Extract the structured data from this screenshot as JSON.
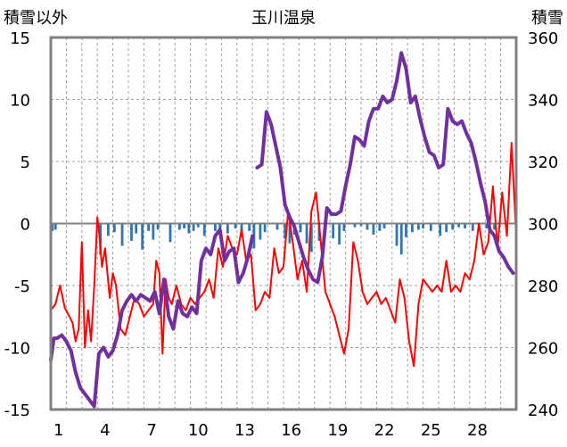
{
  "chart_data": {
    "type": "line",
    "title": "玉川温泉",
    "left_axis_label": "積雪以外",
    "right_axis_label": "積雪",
    "left_axis": {
      "min": -15,
      "max": 15,
      "ticks": [
        "-15",
        "-10",
        "-5",
        "0",
        "5",
        "10",
        "15"
      ]
    },
    "right_axis": {
      "min": 240,
      "max": 360,
      "ticks": [
        "240",
        "260",
        "280",
        "300",
        "320",
        "340",
        "360"
      ]
    },
    "x_axis": {
      "min": 0,
      "max": 30,
      "ticks": [
        "1",
        "4",
        "7",
        "10",
        "13",
        "16",
        "19",
        "22",
        "25",
        "28"
      ]
    },
    "grid": true,
    "colors": {
      "temperature": "#ff0000",
      "snow": "#7030a0",
      "precip": "#2e75b6",
      "frame": "#808080"
    },
    "series": [
      {
        "axis": "left",
        "kind": "line",
        "x": [
          0.0,
          0.3,
          0.6,
          0.9,
          1.2,
          1.4,
          1.6,
          1.8,
          2.0,
          2.2,
          2.4,
          2.6,
          2.8,
          3.0,
          3.1,
          3.3,
          3.5,
          3.8,
          4.0,
          4.2,
          4.5,
          4.8,
          5.1,
          5.4,
          5.7,
          6.0,
          6.3,
          6.6,
          6.8,
          7.0,
          7.2,
          7.4,
          7.6,
          7.8,
          8.1,
          8.4,
          8.7,
          9.0,
          9.3,
          9.6,
          9.9,
          10.2,
          10.5,
          10.8,
          11.1,
          11.4,
          11.7,
          12.0,
          12.3,
          12.6,
          12.9,
          13.2,
          13.5,
          13.8,
          14.1,
          14.4,
          14.7,
          15.0,
          15.3,
          15.6,
          15.9,
          16.2,
          16.5,
          16.8,
          17.1,
          17.4,
          17.7,
          18.0,
          18.3,
          18.6,
          18.9,
          19.2,
          19.5,
          19.8,
          20.1,
          20.4,
          20.7,
          21.0,
          21.3,
          21.6,
          21.9,
          22.2,
          22.5,
          22.8,
          23.1,
          23.4,
          23.7,
          24.0,
          24.3,
          24.6,
          24.9,
          25.2,
          25.5,
          25.8,
          26.1,
          26.4,
          26.7,
          27.0,
          27.3,
          27.6,
          27.9,
          28.2,
          28.5,
          28.8,
          29.1,
          29.4,
          29.7,
          30.0
        ],
        "y": [
          -7.0,
          -6.5,
          -5.0,
          -6.8,
          -7.5,
          -8.0,
          -9.5,
          -8.5,
          -1.5,
          -10.0,
          -7.0,
          -9.5,
          -5.0,
          0.5,
          -0.5,
          -3.5,
          -2.0,
          -6.0,
          -4.0,
          -5.0,
          -8.5,
          -9.0,
          -7.5,
          -6.0,
          -6.5,
          -7.5,
          -7.0,
          -6.5,
          -3.0,
          -4.0,
          -10.5,
          -4.5,
          -6.0,
          -6.5,
          -5.0,
          -6.5,
          -7.0,
          -6.0,
          -6.5,
          -6.0,
          -5.5,
          -4.5,
          -6.0,
          -2.0,
          -3.5,
          -1.0,
          -2.0,
          -2.5,
          -0.5,
          -3.0,
          -2.5,
          -7.0,
          -6.5,
          -5.5,
          -6.0,
          -2.0,
          -4.0,
          -3.5,
          1.0,
          -1.5,
          -4.5,
          -3.0,
          -5.5,
          1.0,
          2.5,
          -1.5,
          -5.5,
          -6.5,
          -7.5,
          -9.0,
          -10.5,
          -8.5,
          -1.5,
          -3.0,
          -5.5,
          -6.5,
          -6.0,
          -5.5,
          -6.5,
          -6.0,
          -7.0,
          -8.0,
          -4.5,
          -6.0,
          -9.5,
          -11.5,
          -6.5,
          -4.5,
          -5.0,
          -5.5,
          -5.0,
          -5.5,
          -3.0,
          -5.5,
          -5.0,
          -5.5,
          -4.0,
          -4.5,
          -3.0,
          0.0,
          -2.5,
          -1.5,
          3.0,
          -2.0,
          2.5,
          -1.0,
          6.5,
          -1.0
        ]
      },
      {
        "axis": "right",
        "kind": "line",
        "x": [
          0.0,
          0.2,
          0.4,
          0.7,
          1.0,
          1.3,
          1.6,
          1.9,
          2.2,
          2.5,
          2.8,
          3.1,
          3.4,
          3.7,
          4.0,
          4.3,
          4.6,
          4.9,
          5.2,
          5.5,
          5.8,
          6.1,
          6.4,
          6.7,
          7.0,
          7.3,
          7.6,
          7.9,
          8.2,
          8.5,
          8.8,
          9.1,
          9.4,
          9.7,
          10.0,
          10.3,
          10.6,
          10.9,
          11.2,
          11.5,
          11.8,
          12.1,
          12.4,
          12.7,
          13.0
        ],
        "y": [
          256,
          263,
          263,
          264,
          262,
          259,
          252,
          247,
          245,
          243,
          241,
          258,
          260,
          257,
          259,
          264,
          272,
          275,
          277,
          275,
          277,
          276,
          275,
          278,
          271,
          282,
          270,
          266,
          275,
          271,
          270,
          273,
          271,
          288,
          292,
          290,
          296,
          298,
          288,
          291,
          292,
          281,
          284,
          289,
          296
        ]
      },
      {
        "axis": "right",
        "kind": "line",
        "x": [
          13.3,
          13.6,
          13.9,
          14.2,
          14.5,
          14.8,
          15.1,
          15.4,
          15.7,
          16.0,
          16.3,
          16.6,
          16.9,
          17.2,
          17.5,
          17.8,
          18.1,
          18.4,
          18.7,
          19.0,
          19.3,
          19.6,
          19.9,
          20.2,
          20.5,
          20.8,
          21.1,
          21.4,
          21.7,
          22.0,
          22.3,
          22.6,
          22.9,
          23.2,
          23.5,
          23.8,
          24.1,
          24.4,
          24.7,
          25.0,
          25.3,
          25.6,
          25.9,
          26.2,
          26.5,
          26.8,
          27.1,
          27.4,
          27.7,
          28.0,
          28.3,
          28.6,
          28.9,
          29.2,
          29.5,
          29.8
        ],
        "y": [
          318,
          319,
          336,
          332,
          325,
          318,
          306,
          302,
          299,
          294,
          289,
          285,
          282,
          281,
          289,
          305,
          303,
          303,
          304,
          312,
          319,
          328,
          327,
          325,
          333,
          337,
          337,
          341,
          339,
          340,
          346,
          355,
          350,
          339,
          341,
          334,
          328,
          323,
          322,
          318,
          319,
          337,
          333,
          332,
          333,
          329,
          326,
          320,
          313,
          307,
          298,
          296,
          291,
          289,
          286,
          284
        ]
      },
      {
        "axis": "left",
        "kind": "bar",
        "x": [
          0.1,
          0.3,
          3.2,
          3.7,
          4.1,
          4.6,
          5.2,
          5.5,
          5.9,
          6.3,
          6.6,
          6.9,
          7.7,
          8.3,
          8.6,
          8.9,
          9.2,
          9.5,
          9.9,
          10.6,
          10.9,
          11.4,
          11.9,
          12.3,
          12.8,
          13.1,
          13.5,
          13.8,
          14.6,
          15.1,
          15.4,
          15.7,
          16.1,
          16.5,
          16.8,
          17.3,
          17.7,
          18.2,
          18.6,
          18.9,
          19.6,
          20.0,
          20.4,
          20.8,
          21.2,
          21.5,
          22.3,
          22.6,
          22.9,
          23.3,
          23.7,
          24.0,
          24.5,
          25.1,
          25.5,
          25.9,
          26.3,
          26.7,
          27.2,
          27.6,
          28.1,
          28.6
        ],
        "y": [
          -0.6,
          -0.5,
          -2.5,
          -1.0,
          -0.7,
          -1.8,
          -1.4,
          -0.8,
          -2.1,
          -0.6,
          -1.3,
          -0.5,
          -1.5,
          -0.5,
          -0.4,
          -0.8,
          -0.6,
          -0.3,
          -1.0,
          -0.6,
          -0.4,
          -0.8,
          -0.4,
          -1.1,
          -0.6,
          -2.0,
          -1.3,
          -0.7,
          -0.5,
          -1.2,
          -1.6,
          -0.9,
          -0.7,
          -1.6,
          -2.3,
          -1.4,
          -0.5,
          -1.2,
          -1.7,
          -0.6,
          -0.3,
          -0.2,
          -0.5,
          -0.9,
          -0.6,
          -0.4,
          -1.8,
          -2.5,
          -1.1,
          -0.7,
          -0.5,
          -0.4,
          -0.6,
          -1.0,
          -0.7,
          -0.5,
          -0.3,
          -0.4,
          -0.6,
          -0.3,
          -0.4,
          -0.5
        ]
      }
    ]
  }
}
